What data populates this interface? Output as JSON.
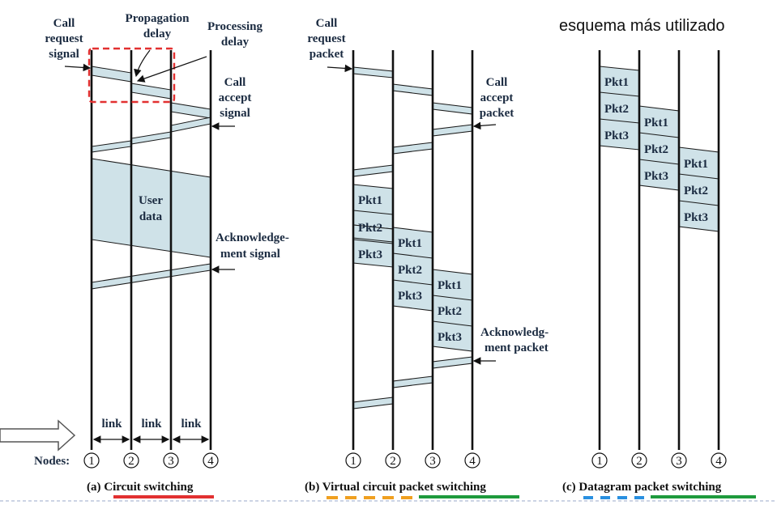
{
  "note": "esquema más utilizado",
  "panel_a": {
    "call_request": [
      "Call",
      "request",
      "signal"
    ],
    "propagation": [
      "Propagation",
      "delay"
    ],
    "processing": [
      "Processing",
      "delay"
    ],
    "call_accept": [
      "Call",
      "accept",
      "signal"
    ],
    "user_data": [
      "User",
      "data"
    ],
    "ack": [
      "Acknowledge-",
      "ment signal"
    ],
    "link": "link",
    "nodes_label": "Nodes:",
    "caption": "(a) Circuit switching"
  },
  "panel_b": {
    "call_request": [
      "Call",
      "request",
      "packet"
    ],
    "call_accept": [
      "Call",
      "accept",
      "packet"
    ],
    "ack": [
      "Acknowledg-",
      "ment packet"
    ],
    "caption": "(b) Virtual circuit packet switching"
  },
  "panel_c": {
    "caption": "(c) Datagram packet switching"
  },
  "packets": [
    "Pkt1",
    "Pkt2",
    "Pkt3"
  ],
  "node_numbers": [
    "1",
    "2",
    "3",
    "4"
  ],
  "colors": {
    "highlight": "#e23030",
    "orange": "#f0a020",
    "green": "#1e9a3c",
    "blue": "#2a90e0",
    "band": "#cfe2e8"
  }
}
